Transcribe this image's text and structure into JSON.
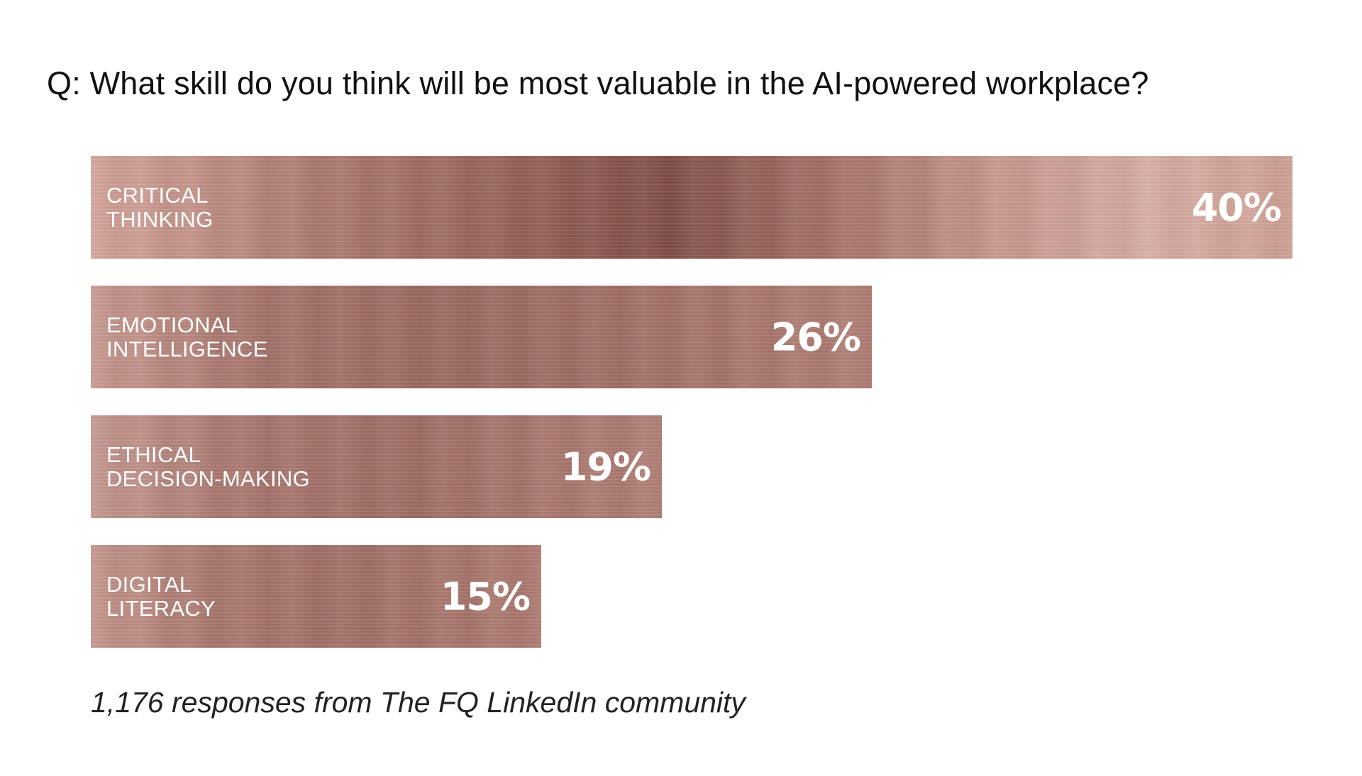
{
  "chart_data": {
    "type": "bar",
    "orientation": "horizontal",
    "title": "Q: What skill do you think will be most valuable in the AI-powered workplace?",
    "categories": [
      "CRITICAL\nTHINKING",
      "EMOTIONAL\nINTELLIGENCE",
      "ETHICAL\nDECISION-MAKING",
      "DIGITAL\nLITERACY"
    ],
    "values": [
      40,
      26,
      19,
      15
    ],
    "value_labels": [
      "40%",
      "26%",
      "19%",
      "15%"
    ],
    "unit": "%",
    "xlim": [
      0,
      40
    ],
    "grid": false,
    "legend": "none",
    "bar_color": "#a8756b",
    "footnote": "1,176 responses from The FQ LinkedIn community"
  }
}
